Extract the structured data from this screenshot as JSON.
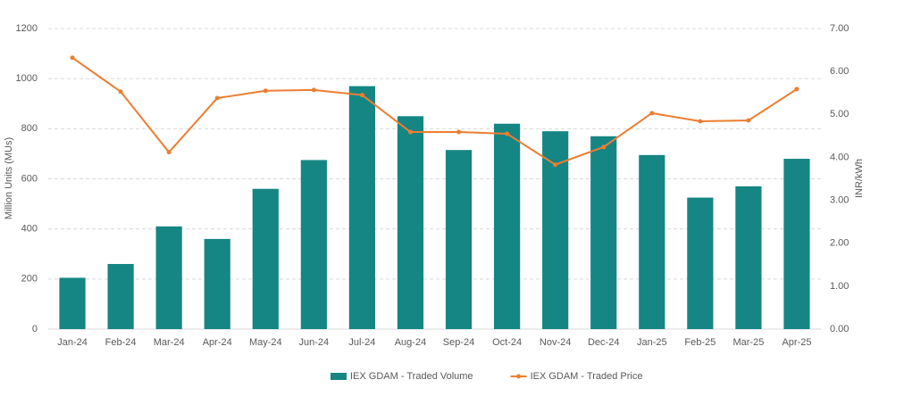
{
  "chart_data": {
    "type": "bar-line",
    "categories": [
      "Jan-24",
      "Feb-24",
      "Mar-24",
      "Apr-24",
      "May-24",
      "Jun-24",
      "Jul-24",
      "Aug-24",
      "Sep-24",
      "Oct-24",
      "Nov-24",
      "Dec-24",
      "Jan-25",
      "Feb-25",
      "Mar-25",
      "Apr-25"
    ],
    "series": [
      {
        "name": "IEX GDAM - Traded Volume",
        "type": "bar",
        "color": "#158684",
        "values": [
          205,
          260,
          410,
          360,
          560,
          675,
          970,
          850,
          715,
          820,
          790,
          770,
          695,
          525,
          570,
          680
        ]
      },
      {
        "name": "IEX GDAM - Traded Price",
        "type": "line",
        "axis": "y2",
        "color": "#ed7d31",
        "values": [
          6.32,
          5.53,
          4.12,
          5.38,
          5.55,
          5.57,
          5.45,
          4.59,
          4.59,
          4.55,
          3.83,
          4.24,
          5.03,
          4.84,
          4.86,
          5.59
        ]
      }
    ],
    "ylabel": "Million Units (MUs)",
    "y2label": "INR/kWh",
    "ylim": [
      0,
      1200
    ],
    "yticks": [
      0,
      200,
      400,
      600,
      800,
      1000,
      1200
    ],
    "y2lim": [
      0,
      7
    ],
    "y2ticks": [
      {
        "value": 0,
        "label": "0.00"
      },
      {
        "value": 1,
        "label": "1.00"
      },
      {
        "value": 2,
        "label": "2.00"
      },
      {
        "value": 3,
        "label": "3.00"
      },
      {
        "value": 4,
        "label": "4.00"
      },
      {
        "value": 5,
        "label": "5.00"
      },
      {
        "value": 6,
        "label": "6.00"
      },
      {
        "value": 7,
        "label": "7.00"
      }
    ],
    "grid": true,
    "legend": "bottom"
  }
}
